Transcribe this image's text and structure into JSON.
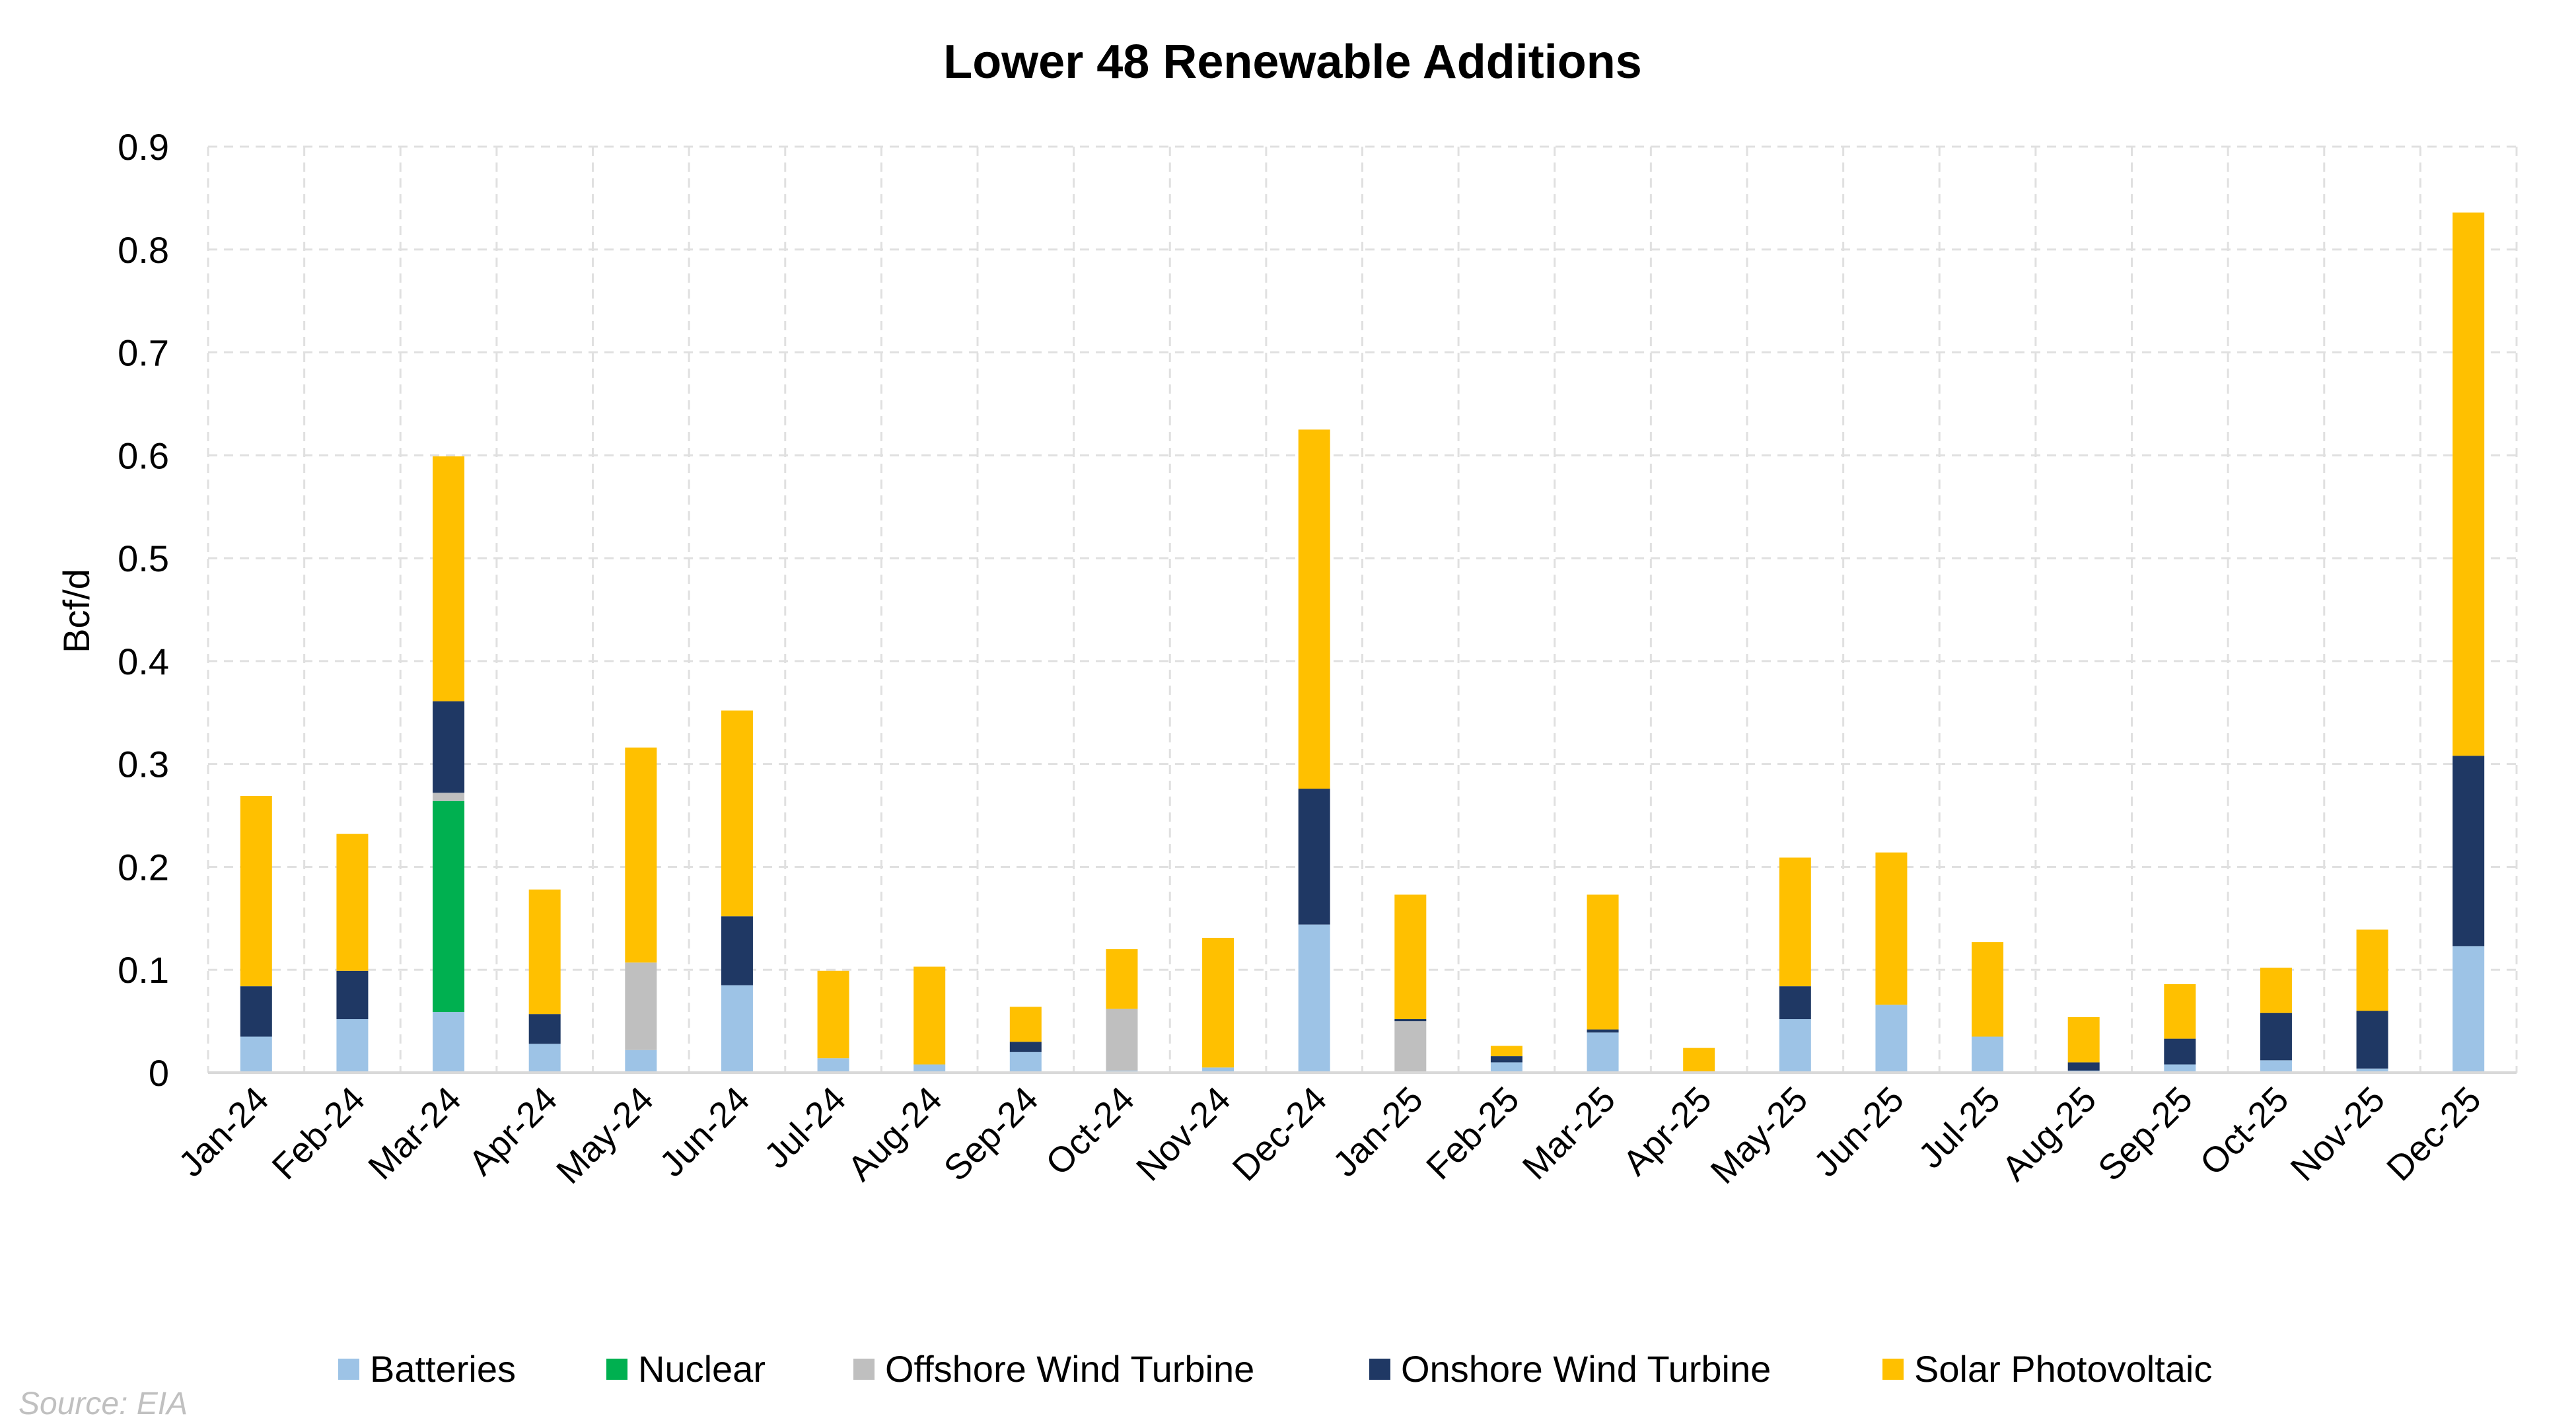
{
  "chart_data": {
    "type": "bar",
    "stacked": true,
    "title": "Lower 48 Renewable Additions",
    "ylabel": "Bcf/d",
    "ylim": [
      0,
      0.9
    ],
    "yticks": [
      "0",
      "0.1",
      "0.2",
      "0.3",
      "0.4",
      "0.5",
      "0.6",
      "0.7",
      "0.8",
      "0.9"
    ],
    "grid": true,
    "legend_position": "bottom",
    "categories": [
      "Jan-24",
      "Feb-24",
      "Mar-24",
      "Apr-24",
      "May-24",
      "Jun-24",
      "Jul-24",
      "Aug-24",
      "Sep-24",
      "Oct-24",
      "Nov-24",
      "Dec-24",
      "Jan-25",
      "Feb-25",
      "Mar-25",
      "Apr-25",
      "May-25",
      "Jun-25",
      "Jul-25",
      "Aug-25",
      "Sep-25",
      "Oct-25",
      "Nov-25",
      "Dec-25"
    ],
    "series": [
      {
        "name": "Batteries",
        "color": "#9dc3e6",
        "values": [
          0.035,
          0.052,
          0.059,
          0.028,
          0.022,
          0.085,
          0.014,
          0.008,
          0.02,
          0.002,
          0.005,
          0.144,
          0.0,
          0.01,
          0.039,
          0.001,
          0.052,
          0.066,
          0.035,
          0.002,
          0.008,
          0.012,
          0.004,
          0.123
        ]
      },
      {
        "name": "Nuclear",
        "color": "#00b050",
        "values": [
          0,
          0,
          0.205,
          0,
          0,
          0,
          0,
          0,
          0,
          0,
          0,
          0,
          0,
          0,
          0,
          0,
          0,
          0,
          0,
          0,
          0,
          0,
          0,
          0
        ]
      },
      {
        "name": "Offshore Wind Turbine",
        "color": "#bfbfbf",
        "values": [
          0,
          0,
          0.008,
          0,
          0.085,
          0,
          0,
          0,
          0,
          0.06,
          0,
          0,
          0.05,
          0,
          0,
          0,
          0,
          0,
          0,
          0,
          0,
          0,
          0,
          0
        ]
      },
      {
        "name": "Onshore Wind Turbine",
        "color": "#1f3864",
        "values": [
          0.049,
          0.047,
          0.089,
          0.029,
          0,
          0.067,
          0,
          0,
          0.01,
          0,
          0,
          0.132,
          0.002,
          0.006,
          0.003,
          0,
          0.032,
          0,
          0,
          0.008,
          0.025,
          0.046,
          0.056,
          0.185
        ]
      },
      {
        "name": "Solar Photovoltaic",
        "color": "#ffc000",
        "values": [
          0.185,
          0.133,
          0.238,
          0.121,
          0.209,
          0.2,
          0.085,
          0.095,
          0.034,
          0.058,
          0.126,
          0.349,
          0.121,
          0.01,
          0.131,
          0.023,
          0.125,
          0.148,
          0.092,
          0.044,
          0.053,
          0.044,
          0.079,
          0.528
        ]
      }
    ]
  },
  "source": "Source: EIA"
}
